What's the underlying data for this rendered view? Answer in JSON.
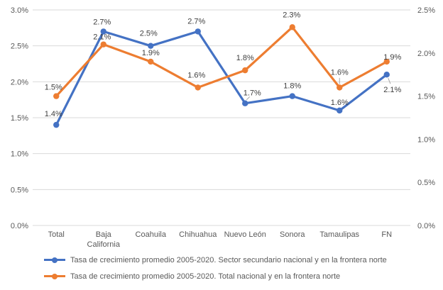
{
  "chart_data": {
    "type": "line",
    "title": "",
    "xlabel": "",
    "ylabel": "",
    "grid": true,
    "legend_position": "bottom-left",
    "categories": [
      "Total",
      "Baja California",
      "Coahuila",
      "Chihuahua",
      "Nuevo León",
      "Sonora",
      "Tamaulipas",
      "FN"
    ],
    "series": [
      {
        "name": "Tasa de crecimiento promedio 2005-2020. Sector secundario nacional y en la frontera norte",
        "color": "#4472C4",
        "axis": "left",
        "values": [
          1.4,
          2.7,
          2.5,
          2.7,
          1.7,
          1.8,
          1.6,
          2.1
        ],
        "labels": [
          "1.4%",
          "2.7%",
          "2.5%",
          "2.7%",
          "1.7%",
          "1.8%",
          "1.6%",
          "2.1%"
        ]
      },
      {
        "name": "Tasa de crecimiento promedio 2005-2020. Total nacional y en la frontera norte",
        "color": "#ED7D31",
        "axis": "right",
        "values": [
          1.5,
          2.1,
          1.9,
          1.6,
          1.8,
          2.3,
          1.6,
          1.9
        ],
        "labels": [
          "1.5%",
          "2.1%",
          "1.9%",
          "1.6%",
          "1.8%",
          "2.3%",
          "1.6%",
          "1.9%"
        ]
      }
    ],
    "left_axis": {
      "min": 0,
      "max": 3,
      "step": 0.5,
      "ticks": [
        "3.0%",
        "2.5%",
        "2.0%",
        "1.5%",
        "1.0%",
        "0.5%",
        "0.0%"
      ]
    },
    "right_axis": {
      "min": 0,
      "max": 2.5,
      "step": 0.5,
      "ticks": [
        "2.5%",
        "2.0%",
        "1.5%",
        "1.0%",
        "0.5%",
        "0.0%"
      ]
    }
  },
  "colors": {
    "series_blue": "#4472C4",
    "series_orange": "#ED7D31",
    "gridline": "#D9D9D9",
    "tick_text": "#595959",
    "data_label_text": "#404040",
    "leader_line": "#A6A6A6",
    "background": "#FFFFFF"
  }
}
